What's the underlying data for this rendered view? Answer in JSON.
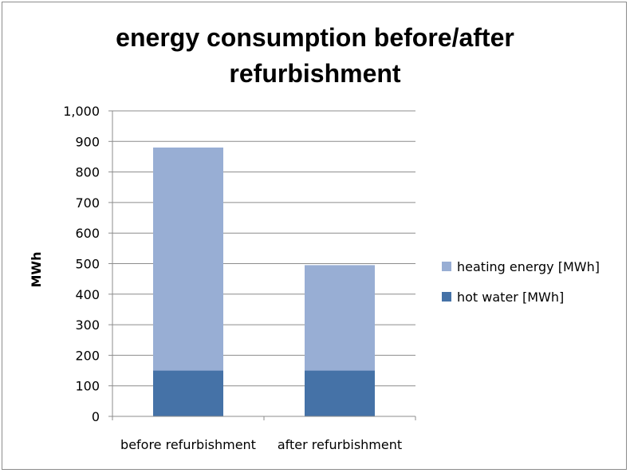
{
  "chart_data": {
    "type": "bar",
    "stacked": true,
    "title": "energy consumption before/after refurbishment",
    "title_lines": [
      "energy consumption before/after",
      "refurbishment"
    ],
    "xlabel": "",
    "ylabel": "MWh",
    "ylim": [
      0,
      1000
    ],
    "yticks": [
      0,
      100,
      200,
      300,
      400,
      500,
      600,
      700,
      800,
      900,
      1000
    ],
    "ytick_labels": [
      "0",
      "100",
      "200",
      "300",
      "400",
      "500",
      "600",
      "700",
      "800",
      "900",
      "1,000"
    ],
    "grid": true,
    "legend_position": "right",
    "categories": [
      "before refurbishment",
      "after refurbishment"
    ],
    "series": [
      {
        "name": "hot water [MWh]",
        "values": [
          150,
          150
        ],
        "color": "#4572a7"
      },
      {
        "name": "heating energy [MWh]",
        "values": [
          730,
          345
        ],
        "color": "#98aed4"
      }
    ],
    "legend_order": [
      "heating energy [MWh]",
      "hot water [MWh]"
    ]
  }
}
